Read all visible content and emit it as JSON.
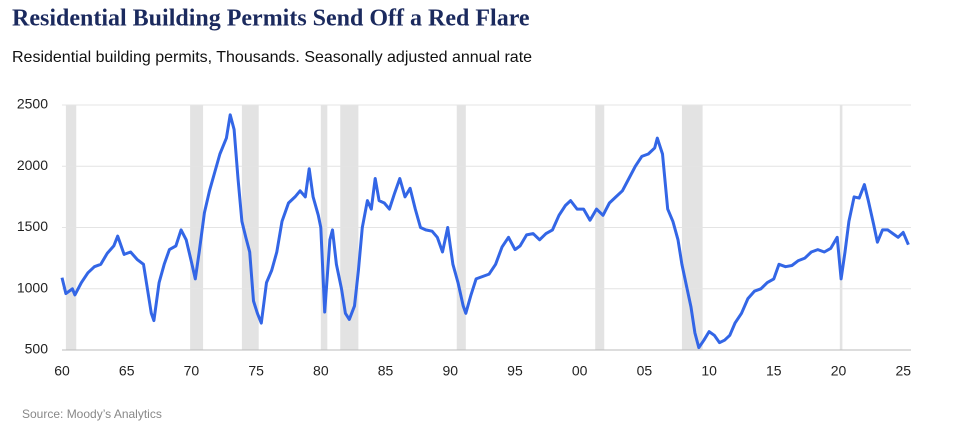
{
  "chart_data": {
    "type": "line",
    "title": "Residential Building Permits Send Off a Red Flare",
    "subtitle": "Residential building permits, Thousands. Seasonally adjusted annual rate",
    "source": "Source: Moody’s Analytics",
    "grid": true,
    "recession_color": "#e3e3e3",
    "recessions": [
      [
        1960.3,
        1961.1
      ],
      [
        1969.9,
        1970.9
      ],
      [
        1973.9,
        1975.2
      ],
      [
        1980.0,
        1980.5
      ],
      [
        1981.5,
        1982.9
      ],
      [
        1990.5,
        1991.2
      ],
      [
        2001.2,
        2001.9
      ],
      [
        2007.9,
        2009.5
      ],
      [
        2020.1,
        2020.3
      ]
    ],
    "xlim": [
      1960,
      2025.6
    ],
    "xticks": [
      {
        "value": 1960,
        "label": "60"
      },
      {
        "value": 1965,
        "label": "65"
      },
      {
        "value": 1970,
        "label": "70"
      },
      {
        "value": 1975,
        "label": "75"
      },
      {
        "value": 1980,
        "label": "80"
      },
      {
        "value": 1985,
        "label": "85"
      },
      {
        "value": 1990,
        "label": "90"
      },
      {
        "value": 1995,
        "label": "95"
      },
      {
        "value": 2000,
        "label": "00"
      },
      {
        "value": 2005,
        "label": "05"
      },
      {
        "value": 2010,
        "label": "10"
      },
      {
        "value": 2015,
        "label": "15"
      },
      {
        "value": 2020,
        "label": "20"
      },
      {
        "value": 2025,
        "label": "25"
      }
    ],
    "ylim": [
      500,
      2500
    ],
    "yticks": [
      500,
      1000,
      1500,
      2000,
      2500
    ],
    "x": [
      1960.0,
      1960.3,
      1960.8,
      1961.0,
      1961.5,
      1962.0,
      1962.5,
      1963.0,
      1963.5,
      1964.0,
      1964.3,
      1964.8,
      1965.3,
      1965.8,
      1966.3,
      1966.6,
      1966.9,
      1967.1,
      1967.5,
      1967.9,
      1968.3,
      1968.8,
      1969.2,
      1969.6,
      1970.0,
      1970.3,
      1970.6,
      1971.0,
      1971.4,
      1971.8,
      1972.2,
      1972.7,
      1973.0,
      1973.3,
      1973.6,
      1973.9,
      1974.2,
      1974.5,
      1974.8,
      1975.1,
      1975.4,
      1975.8,
      1976.2,
      1976.6,
      1977.0,
      1977.5,
      1978.0,
      1978.4,
      1978.8,
      1979.1,
      1979.4,
      1979.8,
      1980.0,
      1980.3,
      1980.7,
      1980.9,
      1981.2,
      1981.6,
      1981.9,
      1982.2,
      1982.6,
      1982.9,
      1983.2,
      1983.6,
      1983.9,
      1984.2,
      1984.5,
      1984.9,
      1985.3,
      1985.7,
      1986.1,
      1986.5,
      1986.9,
      1987.3,
      1987.7,
      1988.1,
      1988.6,
      1989.0,
      1989.4,
      1989.8,
      1990.2,
      1990.6,
      1991.0,
      1991.2,
      1991.6,
      1992.0,
      1992.5,
      1993.0,
      1993.5,
      1994.0,
      1994.5,
      1995.0,
      1995.4,
      1995.9,
      1996.4,
      1996.9,
      1997.4,
      1997.9,
      1998.4,
      1998.9,
      1999.3,
      1999.8,
      2000.3,
      2000.8,
      2001.3,
      2001.8,
      2002.3,
      2002.8,
      2003.3,
      2003.8,
      2004.3,
      2004.8,
      2005.3,
      2005.8,
      2006.0,
      2006.4,
      2006.8,
      2007.2,
      2007.6,
      2007.9,
      2008.3,
      2008.6,
      2008.9,
      2009.2,
      2009.6,
      2010.0,
      2010.4,
      2010.8,
      2011.2,
      2011.6,
      2012.0,
      2012.5,
      2013.0,
      2013.5,
      2014.0,
      2014.5,
      2015.0,
      2015.4,
      2015.9,
      2016.4,
      2016.9,
      2017.4,
      2017.9,
      2018.4,
      2018.9,
      2019.4,
      2019.9,
      2020.2,
      2020.5,
      2020.8,
      2021.2,
      2021.6,
      2022.0,
      2022.3,
      2022.7,
      2023.0,
      2023.4,
      2023.8,
      2024.2,
      2024.6,
      2025.0,
      2025.4
    ],
    "series": [
      {
        "name": "Residential building permits",
        "color": "#3366e6",
        "values": [
          1090,
          960,
          1000,
          950,
          1050,
          1130,
          1180,
          1200,
          1290,
          1350,
          1430,
          1280,
          1300,
          1240,
          1200,
          1000,
          800,
          740,
          1050,
          1200,
          1320,
          1350,
          1480,
          1400,
          1220,
          1080,
          1300,
          1620,
          1800,
          1950,
          2100,
          2230,
          2420,
          2300,
          1900,
          1550,
          1420,
          1300,
          900,
          800,
          720,
          1050,
          1150,
          1300,
          1550,
          1700,
          1750,
          1800,
          1750,
          1980,
          1750,
          1600,
          1500,
          810,
          1400,
          1480,
          1200,
          1000,
          800,
          750,
          860,
          1150,
          1500,
          1720,
          1650,
          1900,
          1720,
          1700,
          1650,
          1780,
          1900,
          1750,
          1820,
          1650,
          1500,
          1480,
          1470,
          1420,
          1300,
          1500,
          1200,
          1050,
          860,
          800,
          950,
          1080,
          1100,
          1120,
          1200,
          1340,
          1420,
          1320,
          1350,
          1440,
          1450,
          1400,
          1450,
          1480,
          1600,
          1680,
          1720,
          1650,
          1650,
          1560,
          1650,
          1600,
          1700,
          1750,
          1800,
          1900,
          2000,
          2080,
          2100,
          2150,
          2230,
          2100,
          1650,
          1550,
          1400,
          1200,
          1000,
          850,
          640,
          520,
          580,
          650,
          620,
          560,
          580,
          620,
          720,
          800,
          920,
          980,
          1000,
          1050,
          1080,
          1200,
          1180,
          1190,
          1230,
          1250,
          1300,
          1320,
          1300,
          1330,
          1420,
          1080,
          1300,
          1550,
          1750,
          1740,
          1850,
          1720,
          1530,
          1380,
          1480,
          1480,
          1450,
          1420,
          1460,
          1360
        ]
      }
    ]
  }
}
